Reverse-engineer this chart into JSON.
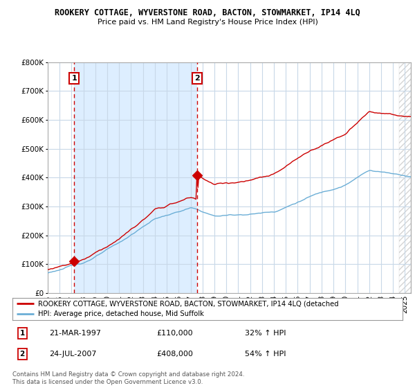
{
  "title": "ROOKERY COTTAGE, WYVERSTONE ROAD, BACTON, STOWMARKET, IP14 4LQ",
  "subtitle": "Price paid vs. HM Land Registry's House Price Index (HPI)",
  "legend_line1": "ROOKERY COTTAGE, WYVERSTONE ROAD, BACTON, STOWMARKET, IP14 4LQ (detached",
  "legend_line2": "HPI: Average price, detached house, Mid Suffolk",
  "sale1_date": "21-MAR-1997",
  "sale1_price": "£110,000",
  "sale1_hpi": "32% ↑ HPI",
  "sale2_date": "24-JUL-2007",
  "sale2_price": "£408,000",
  "sale2_hpi": "54% ↑ HPI",
  "footer": "Contains HM Land Registry data © Crown copyright and database right 2024.\nThis data is licensed under the Open Government Licence v3.0.",
  "hpi_color": "#6baed6",
  "price_color": "#cc0000",
  "vline_color": "#cc0000",
  "shade_color": "#ddeeff",
  "background_color": "#ffffff",
  "grid_color": "#c8d8e8",
  "ylim": [
    0,
    800000
  ],
  "yticks": [
    0,
    100000,
    200000,
    300000,
    400000,
    500000,
    600000,
    700000,
    800000
  ],
  "sale1_year": 1997.22,
  "sale2_year": 2007.56,
  "sale1_price_val": 110000,
  "sale2_price_val": 408000,
  "xmin": 1995,
  "xmax": 2025.5
}
